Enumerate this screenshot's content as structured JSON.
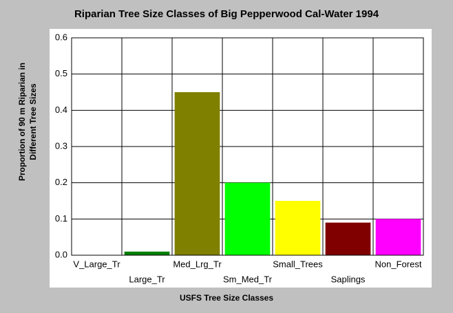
{
  "chart_data": {
    "type": "bar",
    "title": "Riparian Tree Size Classes of Big Pepperwood Cal-Water 1994",
    "x_label": "USFS Tree Size Classes",
    "y_label": [
      "Proportion of 90 m Riparian in",
      "Different Tree Sizes"
    ],
    "categories": [
      "V_Large_Tr",
      "Large_Tr",
      "Med_Lrg_Tr",
      "Sm_Med_Tr",
      "Small_Trees",
      "Saplings",
      "Non_Forest"
    ],
    "values": [
      0,
      0.01,
      0.45,
      0.2,
      0.15,
      0.09,
      0.1
    ],
    "colors": [
      "#000000",
      "#008000",
      "#808000",
      "#00ff00",
      "#ffff00",
      "#800000",
      "#ff00ff"
    ],
    "ylim": [
      0,
      0.6
    ],
    "yticks": [
      {
        "value": 0,
        "label": "0.0"
      },
      0.1,
      0.2,
      0.3,
      0.4,
      0.5,
      0.6
    ],
    "grid": true
  }
}
